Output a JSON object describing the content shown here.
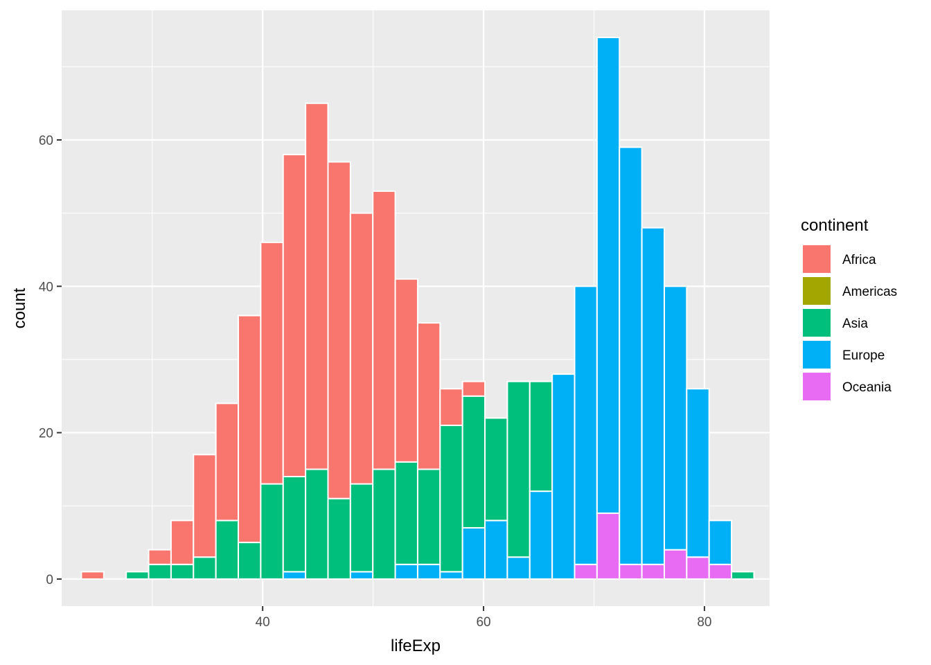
{
  "chart_data": {
    "type": "bar",
    "stacked": true,
    "xlabel": "lifeExp",
    "ylabel": "count",
    "bin_width": 2.03,
    "bin_centers": [
      24.6,
      26.63,
      28.66,
      30.69,
      32.72,
      34.75,
      36.78,
      38.81,
      40.84,
      42.87,
      44.9,
      46.93,
      48.96,
      50.99,
      53.02,
      55.05,
      57.08,
      59.11,
      61.14,
      63.17,
      65.2,
      67.23,
      69.26,
      71.29,
      73.32,
      75.35,
      77.38,
      79.41,
      81.44,
      83.47
    ],
    "xticks": [
      40,
      60,
      80
    ],
    "yticks": [
      0,
      20,
      40,
      60
    ],
    "xlim": [
      21.8,
      85.9
    ],
    "ylim": [
      -3.7,
      77.7
    ],
    "grid": true,
    "legend_title": "continent",
    "legend_position": "right",
    "series": [
      {
        "name": "Africa",
        "color": "#F8766D",
        "values": [
          1,
          0,
          0,
          2,
          6,
          14,
          16,
          31,
          33,
          44,
          50,
          46,
          37,
          38,
          25,
          20,
          5,
          2,
          0,
          0,
          0,
          0,
          0,
          0,
          0,
          0,
          0,
          0,
          0,
          0
        ]
      },
      {
        "name": "Americas",
        "color": "#A3A500",
        "values": [
          0,
          0,
          0,
          0,
          0,
          0,
          0,
          0,
          0,
          0,
          0,
          0,
          0,
          0,
          0,
          0,
          0,
          0,
          0,
          0,
          0,
          0,
          0,
          0,
          0,
          0,
          0,
          0,
          0,
          0
        ]
      },
      {
        "name": "Asia",
        "color": "#00BF7D",
        "values": [
          0,
          0,
          1,
          2,
          2,
          3,
          8,
          5,
          13,
          13,
          15,
          11,
          12,
          15,
          14,
          13,
          20,
          18,
          14,
          24,
          15,
          0,
          0,
          0,
          0,
          0,
          0,
          0,
          0,
          1
        ]
      },
      {
        "name": "Europe",
        "color": "#00B0F6",
        "values": [
          0,
          0,
          0,
          0,
          0,
          0,
          0,
          0,
          0,
          1,
          0,
          0,
          1,
          0,
          2,
          2,
          1,
          7,
          8,
          3,
          12,
          28,
          38,
          65,
          57,
          46,
          36,
          23,
          6,
          0
        ]
      },
      {
        "name": "Oceania",
        "color": "#E76BF3",
        "values": [
          0,
          0,
          0,
          0,
          0,
          0,
          0,
          0,
          0,
          0,
          0,
          0,
          0,
          0,
          0,
          0,
          0,
          0,
          0,
          0,
          0,
          0,
          2,
          9,
          2,
          2,
          4,
          3,
          2,
          0
        ]
      }
    ]
  }
}
